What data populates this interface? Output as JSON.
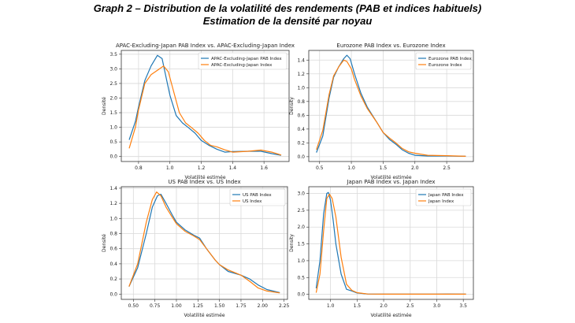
{
  "header": {
    "title": "Graph 2 – Distribution de la volatilité des rendements (PAB et indices habituels)",
    "subtitle": "Estimation de la densité par noyau"
  },
  "colors": {
    "pab": "#1f77b4",
    "index": "#ff7f0e"
  },
  "chart_data": [
    {
      "type": "line",
      "title": "APAC-Excluding-Japan PAB Index vs. APAC-Excluding-Japan Index",
      "xlabel": "Volatilité estimée",
      "ylabel": "Densité",
      "xlim": [
        0.69,
        1.76
      ],
      "ylim": [
        -0.17,
        3.63
      ],
      "xticks": [
        0.8,
        1.0,
        1.2,
        1.4,
        1.6
      ],
      "xtick_labels": [
        "0.8",
        "1.0",
        "1.2",
        "1.4",
        "1.6"
      ],
      "yticks": [
        0,
        0.5,
        1,
        1.5,
        2,
        2.5,
        3,
        3.5
      ],
      "ytick_labels": [
        "0.0",
        "0.5",
        "1.0",
        "1.5",
        "2.0",
        "2.5",
        "3.0",
        "3.5"
      ],
      "grid": true,
      "legend": "top-right",
      "series": [
        {
          "name": "APAC-Excluding-Japan PAB Index",
          "x": [
            0.74,
            0.78,
            0.8,
            0.84,
            0.88,
            0.92,
            0.95,
            0.98,
            1.0,
            1.04,
            1.08,
            1.12,
            1.16,
            1.2,
            1.25,
            1.3,
            1.35,
            1.4,
            1.5,
            1.58,
            1.65,
            1.71
          ],
          "y": [
            0.57,
            1.2,
            1.7,
            2.6,
            3.1,
            3.46,
            3.35,
            2.6,
            2.1,
            1.4,
            1.15,
            0.98,
            0.8,
            0.55,
            0.38,
            0.25,
            0.15,
            0.17,
            0.18,
            0.18,
            0.1,
            0.04
          ]
        },
        {
          "name": "APAC-Excluding-Japan Index",
          "x": [
            0.74,
            0.78,
            0.8,
            0.84,
            0.88,
            0.92,
            0.96,
            0.99,
            1.02,
            1.06,
            1.1,
            1.14,
            1.18,
            1.22,
            1.26,
            1.3,
            1.35,
            1.4,
            1.5,
            1.58,
            1.65,
            1.71
          ],
          "y": [
            0.28,
            1.0,
            1.6,
            2.5,
            2.8,
            2.95,
            3.1,
            2.9,
            2.3,
            1.5,
            1.15,
            0.98,
            0.8,
            0.55,
            0.38,
            0.33,
            0.23,
            0.15,
            0.18,
            0.22,
            0.15,
            0.05
          ]
        }
      ]
    },
    {
      "type": "line",
      "title": "Eurozone PAB Index vs. Eurozone Index",
      "xlabel": "Volatilité estimée",
      "ylabel": "Density",
      "xlim": [
        0.33,
        2.92
      ],
      "ylim": [
        -0.07,
        1.54
      ],
      "xticks": [
        0.5,
        1.0,
        1.5,
        2.0,
        2.5
      ],
      "xtick_labels": [
        "0.5",
        "1.0",
        "1.5",
        "2.0",
        "2.5"
      ],
      "yticks": [
        0,
        0.2,
        0.4,
        0.6,
        0.8,
        1.0,
        1.2,
        1.4
      ],
      "ytick_labels": [
        "0.0",
        "0.2",
        "0.4",
        "0.6",
        "0.8",
        "1.0",
        "1.2",
        "1.4"
      ],
      "grid": true,
      "legend": "top-right",
      "series": [
        {
          "name": "Eurozone PAB Index",
          "x": [
            0.45,
            0.55,
            0.65,
            0.72,
            0.8,
            0.88,
            0.93,
            0.98,
            1.05,
            1.15,
            1.25,
            1.4,
            1.5,
            1.6,
            1.7,
            1.8,
            1.9,
            2.0,
            2.2,
            2.5,
            2.8
          ],
          "y": [
            0.06,
            0.3,
            0.85,
            1.15,
            1.3,
            1.42,
            1.47,
            1.42,
            1.2,
            0.92,
            0.72,
            0.5,
            0.35,
            0.25,
            0.18,
            0.1,
            0.05,
            0.02,
            0.01,
            0.01,
            0.005
          ]
        },
        {
          "name": "Eurozone Index",
          "x": [
            0.45,
            0.55,
            0.65,
            0.72,
            0.8,
            0.88,
            0.93,
            1.0,
            1.05,
            1.15,
            1.25,
            1.4,
            1.5,
            1.6,
            1.7,
            1.8,
            1.9,
            2.0,
            2.2,
            2.5,
            2.8
          ],
          "y": [
            0.1,
            0.38,
            0.9,
            1.17,
            1.3,
            1.4,
            1.38,
            1.27,
            1.12,
            0.88,
            0.7,
            0.5,
            0.35,
            0.27,
            0.2,
            0.12,
            0.07,
            0.05,
            0.02,
            0.015,
            0.005
          ]
        }
      ]
    },
    {
      "type": "line",
      "title": "US PAB Index vs. US Index",
      "xlabel": "Volatilité estimée",
      "ylabel": "Densité",
      "xlim": [
        0.36,
        2.29
      ],
      "ylim": [
        -0.07,
        1.42
      ],
      "xticks": [
        0.5,
        0.75,
        1.0,
        1.25,
        1.5,
        1.75,
        2.0,
        2.25
      ],
      "xtick_labels": [
        "0.50",
        "0.75",
        "1.00",
        "1.25",
        "1.50",
        "1.75",
        "2.00",
        "2.25"
      ],
      "yticks": [
        0,
        0.2,
        0.4,
        0.6,
        0.8,
        1.0,
        1.2,
        1.4
      ],
      "ytick_labels": [
        "0.0",
        "0.2",
        "0.4",
        "0.6",
        "0.8",
        "1.0",
        "1.2",
        "1.4"
      ],
      "grid": true,
      "legend": "top-right",
      "series": [
        {
          "name": "US PAB Index",
          "x": [
            0.45,
            0.55,
            0.65,
            0.72,
            0.78,
            0.82,
            0.88,
            0.95,
            1.0,
            1.1,
            1.2,
            1.27,
            1.35,
            1.45,
            1.5,
            1.6,
            1.75,
            1.85,
            1.95,
            2.05,
            2.2
          ],
          "y": [
            0.1,
            0.35,
            0.8,
            1.15,
            1.3,
            1.32,
            1.2,
            1.05,
            0.95,
            0.85,
            0.78,
            0.74,
            0.6,
            0.45,
            0.39,
            0.3,
            0.25,
            0.2,
            0.12,
            0.06,
            0.02
          ]
        },
        {
          "name": "US Index",
          "x": [
            0.45,
            0.55,
            0.65,
            0.72,
            0.77,
            0.82,
            0.88,
            0.95,
            1.0,
            1.1,
            1.2,
            1.27,
            1.35,
            1.45,
            1.5,
            1.6,
            1.75,
            1.85,
            1.95,
            2.05,
            2.2
          ],
          "y": [
            0.1,
            0.4,
            0.95,
            1.25,
            1.35,
            1.3,
            1.15,
            1.02,
            0.93,
            0.83,
            0.77,
            0.72,
            0.6,
            0.45,
            0.39,
            0.32,
            0.25,
            0.17,
            0.08,
            0.04,
            0.015
          ]
        }
      ]
    },
    {
      "type": "line",
      "title": "Japan PAB Index vs. Japan Index",
      "xlabel": "Volatilité estimée",
      "ylabel": "Density",
      "xlim": [
        0.59,
        3.69
      ],
      "ylim": [
        -0.15,
        3.2
      ],
      "xticks": [
        1.0,
        1.5,
        2.0,
        2.5,
        3.0,
        3.5
      ],
      "xtick_labels": [
        "1.0",
        "1.5",
        "2.0",
        "2.5",
        "3.0",
        "3.5"
      ],
      "yticks": [
        0,
        0.5,
        1,
        1.5,
        2,
        2.5,
        3
      ],
      "ytick_labels": [
        "0.0",
        "0.5",
        "1.0",
        "1.5",
        "2.0",
        "2.5",
        "3.0"
      ],
      "grid": true,
      "legend": "top-right",
      "series": [
        {
          "name": "Japan PAB Index",
          "x": [
            0.73,
            0.8,
            0.87,
            0.93,
            0.96,
            1.0,
            1.05,
            1.1,
            1.2,
            1.3,
            1.4,
            1.5,
            1.7,
            2.0,
            2.5,
            3.0,
            3.2,
            3.55
          ],
          "y": [
            0.18,
            1.0,
            2.4,
            3.0,
            3.03,
            2.8,
            2.2,
            1.5,
            0.6,
            0.15,
            0.1,
            0.04,
            0.01,
            0.005,
            0.005,
            0.005,
            0.01,
            0.005
          ]
        },
        {
          "name": "Japan Index",
          "x": [
            0.73,
            0.8,
            0.87,
            0.93,
            0.98,
            1.03,
            1.1,
            1.2,
            1.3,
            1.4,
            1.5,
            1.7,
            2.0,
            2.5,
            3.0,
            3.55
          ],
          "y": [
            0.05,
            0.6,
            1.9,
            2.85,
            2.98,
            2.85,
            2.3,
            1.1,
            0.3,
            0.12,
            0.05,
            0.01,
            0.005,
            0.005,
            0.005,
            0.005
          ]
        }
      ]
    }
  ]
}
